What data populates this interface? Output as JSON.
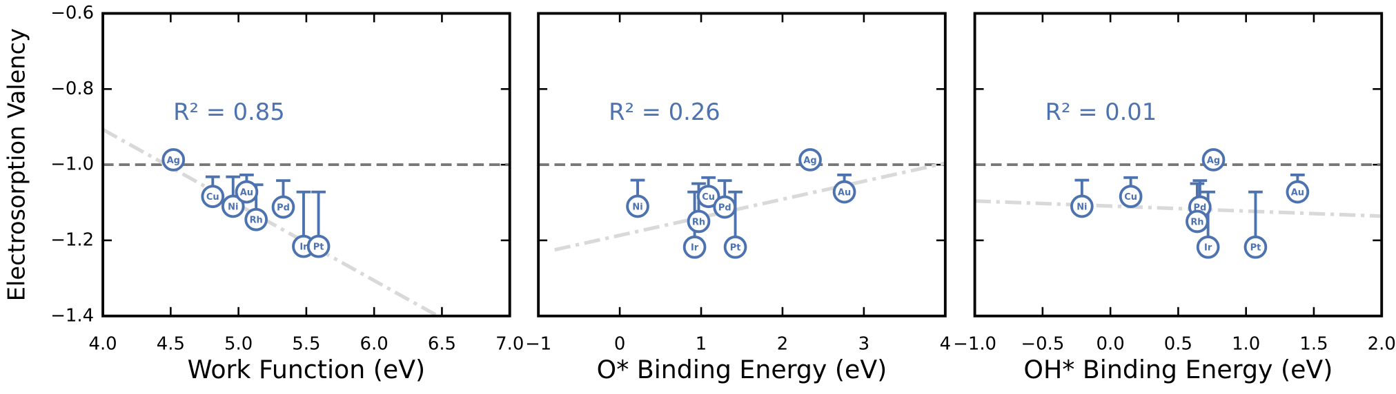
{
  "chart_data": [
    {
      "type": "scatter",
      "color": "#4c72b0",
      "xlabel": "Work Function (eV)",
      "ylabel": "Electrosorption Valency",
      "annotation": "R² = 0.85",
      "point_labels": [
        "Ag",
        "Cu",
        "Ni",
        "Au",
        "Rh",
        "Pd",
        "Ir",
        "Pt"
      ],
      "x": [
        4.52,
        4.81,
        4.96,
        5.06,
        5.13,
        5.33,
        5.48,
        5.59
      ],
      "values": [
        -0.987,
        -1.084,
        -1.11,
        -1.072,
        -1.145,
        -1.112,
        -1.216,
        -1.216
      ],
      "errors": [
        null,
        0.052,
        0.078,
        0.045,
        0.092,
        0.07,
        0.144,
        0.144
      ],
      "reference_y": -1.0,
      "trendline": {
        "x": [
          4.0,
          6.47
        ],
        "y": [
          -0.907,
          -1.4
        ]
      },
      "xlim": [
        4.0,
        7.0
      ],
      "ylim": [
        -1.4,
        -0.6
      ],
      "xticks": [
        {
          "value": 4.0,
          "label": "4.0"
        },
        {
          "value": 4.5,
          "label": "4.5"
        },
        {
          "value": 5.0,
          "label": "5.0"
        },
        {
          "value": 5.5,
          "label": "5.5"
        },
        {
          "value": 6.0,
          "label": "6.0"
        },
        {
          "value": 6.5,
          "label": "6.5"
        },
        {
          "value": 7.0,
          "label": "7.0"
        }
      ],
      "yticks": [
        {
          "value": -1.4,
          "label": "−1.4"
        },
        {
          "value": -1.2,
          "label": "−1.2"
        },
        {
          "value": -1.0,
          "label": "−1.0"
        },
        {
          "value": -0.8,
          "label": "−0.8"
        },
        {
          "value": -0.6,
          "label": "−0.6"
        }
      ]
    },
    {
      "type": "scatter",
      "color": "#4c72b0",
      "xlabel": "O* Binding Energy (eV)",
      "annotation": "R² = 0.26",
      "point_labels": [
        "Ni",
        "Rh",
        "Ir",
        "Cu",
        "Pd",
        "Pt",
        "Ag",
        "Au"
      ],
      "x": [
        0.22,
        0.97,
        0.92,
        1.09,
        1.29,
        1.42,
        2.34,
        2.76
      ],
      "values": [
        -1.11,
        -1.15,
        -1.218,
        -1.084,
        -1.112,
        -1.218,
        -0.987,
        -1.072
      ],
      "errors": [
        0.069,
        0.1,
        0.146,
        0.05,
        0.07,
        0.146,
        null,
        0.045
      ],
      "reference_y": -1.0,
      "trendline": {
        "x": [
          -0.8,
          4.0
        ],
        "y": [
          -1.225,
          -0.996
        ]
      },
      "xlim": [
        -1,
        4
      ],
      "ylim": [
        -1.4,
        -0.6
      ],
      "xticks": [
        {
          "value": -1,
          "label": "−1"
        },
        0,
        1,
        2,
        3,
        4
      ],
      "yticks": [
        -1.4,
        -1.2,
        -1.0,
        -0.8,
        -0.6
      ]
    },
    {
      "type": "scatter",
      "color": "#4c72b0",
      "xlabel": "OH* Binding Energy (eV)",
      "annotation": "R² = 0.01",
      "point_labels": [
        "Ni",
        "Cu",
        "Pd",
        "Rh",
        "Ir",
        "Ag",
        "Pt",
        "Au"
      ],
      "x": [
        -0.21,
        0.15,
        0.66,
        0.64,
        0.72,
        0.76,
        1.07,
        1.38
      ],
      "values": [
        -1.11,
        -1.084,
        -1.112,
        -1.15,
        -1.218,
        -0.987,
        -1.218,
        -1.072
      ],
      "errors": [
        0.069,
        0.05,
        0.07,
        0.1,
        0.146,
        null,
        0.146,
        0.045
      ],
      "reference_y": -1.0,
      "trendline": {
        "x": [
          -1.0,
          2.0
        ],
        "y": [
          -1.096,
          -1.136
        ]
      },
      "xlim": [
        -1.0,
        2.0
      ],
      "ylim": [
        -1.4,
        -0.6
      ],
      "xticks": [
        {
          "value": -1.0,
          "label": "−1.0"
        },
        {
          "value": -0.5,
          "label": "−0.5"
        },
        {
          "value": 0.0,
          "label": "0.0"
        },
        {
          "value": 0.5,
          "label": "0.5"
        },
        {
          "value": 1.0,
          "label": "1.0"
        },
        {
          "value": 1.5,
          "label": "1.5"
        },
        {
          "value": 2.0,
          "label": "2.0"
        }
      ],
      "yticks": [
        -1.4,
        -1.2,
        -1.0,
        -0.8,
        -0.6
      ]
    }
  ]
}
